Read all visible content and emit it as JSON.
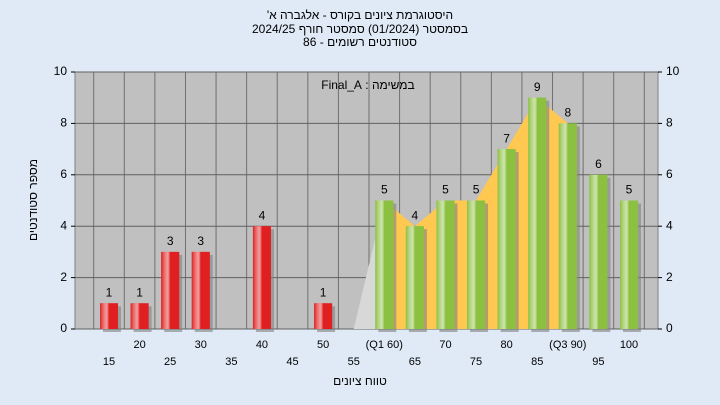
{
  "chart_data": {
    "type": "bar",
    "title": "היסטוגרמת ציונים בקורס - אלגברה א'",
    "subtitle": [
      "בסמסטר (01/2024) סמסטר חורף 2024/25",
      "סטודנטים רשומים - 86"
    ],
    "annotation": "במשימה : Final_A",
    "x_label": "טווח ציונים",
    "y_label": "מספר סטודנטים",
    "categories": [
      "15",
      "20",
      "25",
      "30",
      "35",
      "40",
      "45",
      "50",
      "55",
      "(Q1 60)",
      "65",
      "70",
      "75",
      "80",
      "85",
      "(Q3 90)",
      "95",
      "100"
    ],
    "values": [
      1,
      1,
      3,
      3,
      null,
      4,
      null,
      1,
      null,
      5,
      4,
      5,
      5,
      7,
      9,
      8,
      6,
      5
    ],
    "colors": [
      "#e02020",
      "#e02020",
      "#e02020",
      "#e02020",
      "#e02020",
      "#e02020",
      "#e02020",
      "#e02020",
      "#e02020",
      "#8cc040",
      "#8cc040",
      "#8cc040",
      "#8cc040",
      "#8cc040",
      "#8cc040",
      "#8cc040",
      "#8cc040",
      "#8cc040"
    ],
    "band_color": "#ffc850",
    "ylim": [
      0,
      10
    ],
    "yticks": [
      0,
      2,
      4,
      6,
      8,
      10
    ],
    "y2ticks": [
      0,
      2,
      4,
      6,
      8,
      10
    ],
    "grid": true
  }
}
